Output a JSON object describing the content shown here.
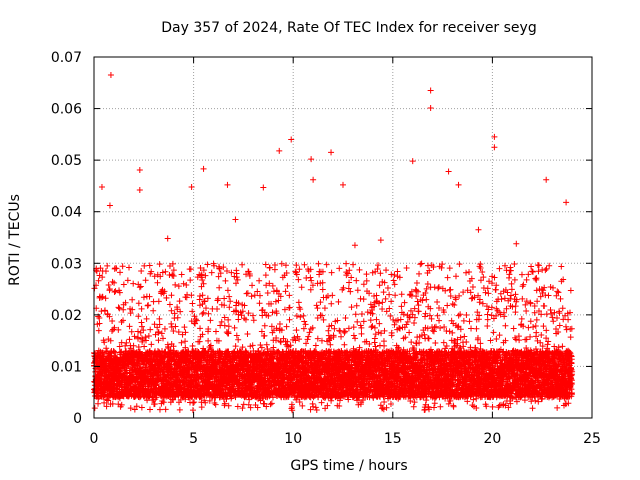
{
  "chart_data": {
    "type": "scatter",
    "title": "Day 357 of 2024, Rate Of TEC Index for receiver seyg",
    "xlabel": "GPS time / hours",
    "ylabel": "ROTI / TECUs",
    "xlim": [
      0,
      25
    ],
    "ylim": [
      0,
      0.07
    ],
    "x_ticks": [
      0,
      5,
      10,
      15,
      20,
      25
    ],
    "x_tick_labels": [
      "0",
      "5",
      "10",
      "15",
      "20",
      "25"
    ],
    "y_ticks": [
      0,
      0.01,
      0.02,
      0.03,
      0.04,
      0.05,
      0.06,
      0.07
    ],
    "y_tick_labels": [
      "0",
      "0.01",
      "0.02",
      "0.03",
      "0.04",
      "0.05",
      "0.06",
      "0.07"
    ],
    "grid": true,
    "marker": "+",
    "color": "#ff0000",
    "series": [
      {
        "name": "ROTI",
        "outliers": [
          [
            0.85,
            0.0665
          ],
          [
            16.9,
            0.0635
          ],
          [
            16.9,
            0.0601
          ],
          [
            9.9,
            0.054
          ],
          [
            20.1,
            0.0545
          ],
          [
            20.1,
            0.0525
          ],
          [
            11.9,
            0.0515
          ],
          [
            9.3,
            0.0518
          ],
          [
            10.9,
            0.0502
          ],
          [
            2.3,
            0.0481
          ],
          [
            5.5,
            0.0483
          ],
          [
            16.0,
            0.0498
          ],
          [
            17.8,
            0.0478
          ],
          [
            0.4,
            0.0448
          ],
          [
            2.3,
            0.0442
          ],
          [
            4.9,
            0.0448
          ],
          [
            6.7,
            0.0452
          ],
          [
            8.5,
            0.0447
          ],
          [
            12.5,
            0.0452
          ],
          [
            18.3,
            0.0452
          ],
          [
            22.7,
            0.0462
          ],
          [
            23.7,
            0.0418
          ],
          [
            0.8,
            0.0412
          ],
          [
            3.7,
            0.0348
          ],
          [
            14.4,
            0.0345
          ],
          [
            19.3,
            0.0365
          ],
          [
            7.1,
            0.0385
          ],
          [
            11.0,
            0.0462
          ],
          [
            13.1,
            0.0335
          ],
          [
            21.2,
            0.0338
          ]
        ],
        "dense_band": {
          "x_range": [
            0,
            24
          ],
          "core_y_range": [
            0.004,
            0.013
          ],
          "typical_peak_y": 0.03,
          "samples": 9000
        }
      }
    ]
  }
}
